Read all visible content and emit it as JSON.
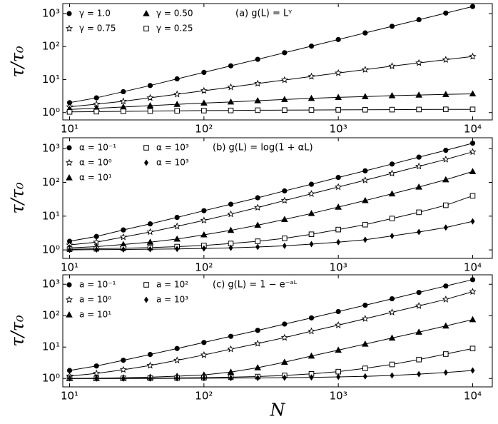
{
  "chart_data": [
    {
      "type": "line",
      "annotation": "(a) g(L) = Lᵞ",
      "ylabel": "τ/τ₀",
      "log_x": true,
      "log_y": true,
      "x": [
        10,
        15.85,
        25.12,
        39.81,
        63.1,
        100,
        158.5,
        251.2,
        398.1,
        631,
        1000,
        1585,
        2512,
        3981,
        6310,
        10000
      ],
      "xlim": [
        8.9,
        14000
      ],
      "ylim": [
        0.6,
        2000
      ],
      "xticks": [
        {
          "value": 10,
          "label": "10¹"
        },
        {
          "value": 100,
          "label": "10²"
        },
        {
          "value": 1000,
          "label": "10³"
        },
        {
          "value": 10000,
          "label": "10⁴"
        }
      ],
      "yticks": [
        {
          "value": 1,
          "label": "10⁰"
        },
        {
          "value": 10,
          "label": "10¹"
        },
        {
          "value": 100,
          "label": "10²"
        },
        {
          "value": 1000,
          "label": "10³"
        }
      ],
      "series": [
        {
          "name": "γ = 1.0",
          "marker": "circle",
          "color": "#000000",
          "values": [
            2.0,
            2.8,
            4.3,
            6.6,
            10.5,
            16.5,
            26,
            41,
            65,
            103,
            163,
            258,
            410,
            650,
            1030,
            1630
          ]
        },
        {
          "name": "γ = 0.75",
          "marker": "star",
          "color": "#000000",
          "values": [
            1.5,
            1.8,
            2.2,
            2.8,
            3.6,
            4.6,
            5.9,
            7.6,
            9.7,
            12.4,
            15.8,
            20,
            25.5,
            32,
            40,
            50
          ]
        },
        {
          "name": "γ = 0.50",
          "marker": "triangle",
          "color": "#000000",
          "values": [
            1.25,
            1.35,
            1.48,
            1.62,
            1.78,
            1.95,
            2.1,
            2.3,
            2.5,
            2.7,
            2.9,
            3.05,
            3.25,
            3.4,
            3.55,
            3.7
          ]
        },
        {
          "name": "γ = 0.25",
          "marker": "square",
          "color": "#000000",
          "values": [
            1.05,
            1.07,
            1.09,
            1.11,
            1.13,
            1.15,
            1.16,
            1.18,
            1.19,
            1.2,
            1.21,
            1.22,
            1.23,
            1.24,
            1.25,
            1.25
          ]
        }
      ]
    },
    {
      "type": "line",
      "annotation": "(b) g(L) = log(1 + αL)",
      "ylabel": "τ/τ₀",
      "log_x": true,
      "log_y": true,
      "x": [
        10,
        15.85,
        25.12,
        39.81,
        63.1,
        100,
        158.5,
        251.2,
        398.1,
        631,
        1000,
        1585,
        2512,
        3981,
        6310,
        10000
      ],
      "xlim": [
        8.9,
        14000
      ],
      "ylim": [
        0.56,
        2100
      ],
      "xticks": [
        {
          "value": 10,
          "label": "10¹"
        },
        {
          "value": 100,
          "label": "10²"
        },
        {
          "value": 1000,
          "label": "10³"
        },
        {
          "value": 10000,
          "label": "10⁴"
        }
      ],
      "yticks": [
        {
          "value": 1,
          "label": "10⁰"
        },
        {
          "value": 10,
          "label": "10¹"
        },
        {
          "value": 100,
          "label": "10²"
        },
        {
          "value": 1000,
          "label": "10³"
        }
      ],
      "series": [
        {
          "name": "α = 10⁻¹",
          "marker": "circle",
          "color": "#000000",
          "values": [
            1.8,
            2.5,
            3.9,
            5.9,
            9.2,
            14.5,
            22.5,
            35,
            56,
            88,
            140,
            220,
            350,
            560,
            890,
            1450
          ]
        },
        {
          "name": "α = 10⁰",
          "marker": "star",
          "color": "#000000",
          "values": [
            1.4,
            1.7,
            2.4,
            3.4,
            5,
            7.5,
            11.5,
            18,
            29,
            46,
            73,
            116,
            185,
            300,
            480,
            800
          ]
        },
        {
          "name": "α = 10¹",
          "marker": "triangle",
          "color": "#000000",
          "values": [
            1.15,
            1.25,
            1.45,
            1.7,
            2.1,
            2.8,
            3.8,
            5.4,
            8,
            12,
            18.5,
            29,
            46,
            73,
            120,
            210
          ]
        },
        {
          "name": "α = 10³",
          "marker": "square",
          "color": "#000000",
          "values": [
            1.05,
            1.08,
            1.12,
            1.17,
            1.25,
            1.35,
            1.55,
            1.8,
            2.2,
            2.9,
            4,
            5.6,
            8.5,
            13,
            21,
            40
          ]
        },
        {
          "name": "α = 10³",
          "marker": "diamond",
          "color": "#000000",
          "values": [
            1.0,
            1.02,
            1.03,
            1.05,
            1.07,
            1.1,
            1.15,
            1.22,
            1.32,
            1.48,
            1.7,
            2,
            2.6,
            3.4,
            4.6,
            7
          ]
        }
      ]
    },
    {
      "type": "line",
      "annotation": "(c) g(L) = 1 − e⁻ᵃᴸ",
      "ylabel": "τ/τ₀",
      "xlabel": "N",
      "log_x": true,
      "log_y": true,
      "x": [
        10,
        15.85,
        25.12,
        39.81,
        63.1,
        100,
        158.5,
        251.2,
        398.1,
        631,
        1000,
        1585,
        2512,
        3981,
        6310,
        10000
      ],
      "xlim": [
        8.9,
        14000
      ],
      "ylim": [
        0.54,
        2000
      ],
      "xticks": [
        {
          "value": 10,
          "label": "10¹"
        },
        {
          "value": 100,
          "label": "10²"
        },
        {
          "value": 1000,
          "label": "10³"
        },
        {
          "value": 10000,
          "label": "10⁴"
        }
      ],
      "yticks": [
        {
          "value": 1,
          "label": "10⁰"
        },
        {
          "value": 10,
          "label": "10¹"
        },
        {
          "value": 100,
          "label": "10²"
        },
        {
          "value": 1000,
          "label": "10³"
        }
      ],
      "series": [
        {
          "name": "a = 10⁻¹",
          "marker": "circle",
          "color": "#000000",
          "values": [
            1.8,
            2.5,
            3.8,
            5.8,
            9,
            14,
            22,
            34,
            54,
            85,
            135,
            215,
            345,
            550,
            880,
            1400
          ]
        },
        {
          "name": "a = 10⁰",
          "marker": "star",
          "color": "#000000",
          "values": [
            1.2,
            1.45,
            1.9,
            2.6,
            3.8,
            5.6,
            8.6,
            13,
            20,
            32,
            50,
            80,
            128,
            205,
            330,
            580
          ]
        },
        {
          "name": "a = 10¹",
          "marker": "triangle",
          "color": "#000000",
          "values": [
            1.0,
            1.02,
            1.05,
            1.1,
            1.18,
            1.3,
            1.6,
            2.2,
            3.3,
            5.2,
            8,
            12.5,
            19.5,
            30,
            47,
            75
          ]
        },
        {
          "name": "a = 10²",
          "marker": "square",
          "color": "#000000",
          "values": [
            1.0,
            1.0,
            1.01,
            1.02,
            1.04,
            1.06,
            1.1,
            1.15,
            1.25,
            1.4,
            1.65,
            2.1,
            2.8,
            4,
            6,
            9
          ]
        },
        {
          "name": "a = 10³",
          "marker": "diamond",
          "color": "#000000",
          "values": [
            1.0,
            1.0,
            1.0,
            1.0,
            1.01,
            1.02,
            1.03,
            1.04,
            1.06,
            1.08,
            1.12,
            1.17,
            1.25,
            1.38,
            1.55,
            1.8
          ]
        }
      ]
    }
  ]
}
